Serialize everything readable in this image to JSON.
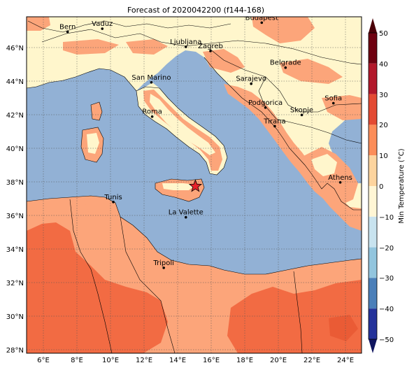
{
  "title": "Forecast of 2020042200 (f144-168)",
  "colorbar": {
    "label": "Min Temperature (°C)",
    "ticks": [
      "50",
      "40",
      "30",
      "20",
      "10",
      "0",
      "−10",
      "−20",
      "−30",
      "−40",
      "−50"
    ],
    "bands": [
      {
        "lo": 40,
        "hi": 50,
        "color": "#6e0010"
      },
      {
        "lo": 30,
        "hi": 40,
        "color": "#b2182b"
      },
      {
        "lo": 20,
        "hi": 30,
        "color": "#e34a33"
      },
      {
        "lo": 10,
        "hi": 20,
        "color": "#fc8d59"
      },
      {
        "lo": 0,
        "hi": 10,
        "color": "#fdd49e"
      },
      {
        "lo": -10,
        "hi": 0,
        "color": "#fff6d5"
      },
      {
        "lo": -20,
        "hi": -10,
        "color": "#c8e3ef"
      },
      {
        "lo": -30,
        "hi": -20,
        "color": "#92c5de"
      },
      {
        "lo": -40,
        "hi": -30,
        "color": "#4b7fb9"
      },
      {
        "lo": -50,
        "hi": -40,
        "color": "#24329a"
      }
    ],
    "extend_top_color": "#4a0008",
    "extend_bottom_color": "#101560"
  },
  "axes": {
    "lon_ticks": [
      "6°E",
      "8°E",
      "10°E",
      "12°E",
      "14°E",
      "16°E",
      "18°E",
      "20°E",
      "22°E",
      "24°E"
    ],
    "lat_ticks": [
      "46°N",
      "44°N",
      "42°N",
      "40°N",
      "38°N",
      "36°N",
      "34°N",
      "32°N",
      "30°N",
      "28°N"
    ]
  },
  "colors": {
    "sea": "#92b1d5",
    "land_cool": "#fff6cc",
    "land_mild": "#fca57a",
    "land_warm": "#f26b43",
    "land_hot": "#ea5b35"
  },
  "cities": [
    {
      "name": "Bern",
      "lon": 7.45,
      "lat": 46.95
    },
    {
      "name": "Vaduz",
      "lon": 9.52,
      "lat": 47.14
    },
    {
      "name": "Budapest",
      "lon": 19.04,
      "lat": 47.5
    },
    {
      "name": "Ljubljana",
      "lon": 14.51,
      "lat": 46.06
    },
    {
      "name": "Zagreb",
      "lon": 15.98,
      "lat": 45.81
    },
    {
      "name": "Belgrade",
      "lon": 20.46,
      "lat": 44.82
    },
    {
      "name": "San Marino",
      "lon": 12.45,
      "lat": 43.94
    },
    {
      "name": "Sarajevo",
      "lon": 18.41,
      "lat": 43.86
    },
    {
      "name": "Sofia",
      "lon": 23.32,
      "lat": 42.7
    },
    {
      "name": "Podgorica",
      "lon": 19.26,
      "lat": 42.44
    },
    {
      "name": "Skopje",
      "lon": 21.43,
      "lat": 42.0
    },
    {
      "name": "Roma",
      "lon": 12.5,
      "lat": 41.9
    },
    {
      "name": "Tirana",
      "lon": 19.82,
      "lat": 41.33
    },
    {
      "name": "Athens",
      "lon": 23.73,
      "lat": 37.98
    },
    {
      "name": "Tunis",
      "lon": 10.18,
      "lat": 36.81
    },
    {
      "name": "La Valette",
      "lon": 14.51,
      "lat": 35.9
    },
    {
      "name": "Tripoli",
      "lon": 13.19,
      "lat": 32.89
    }
  ],
  "marker": {
    "name": "star",
    "lon": 15.08,
    "lat": 37.75,
    "color": "#e8222a"
  }
}
